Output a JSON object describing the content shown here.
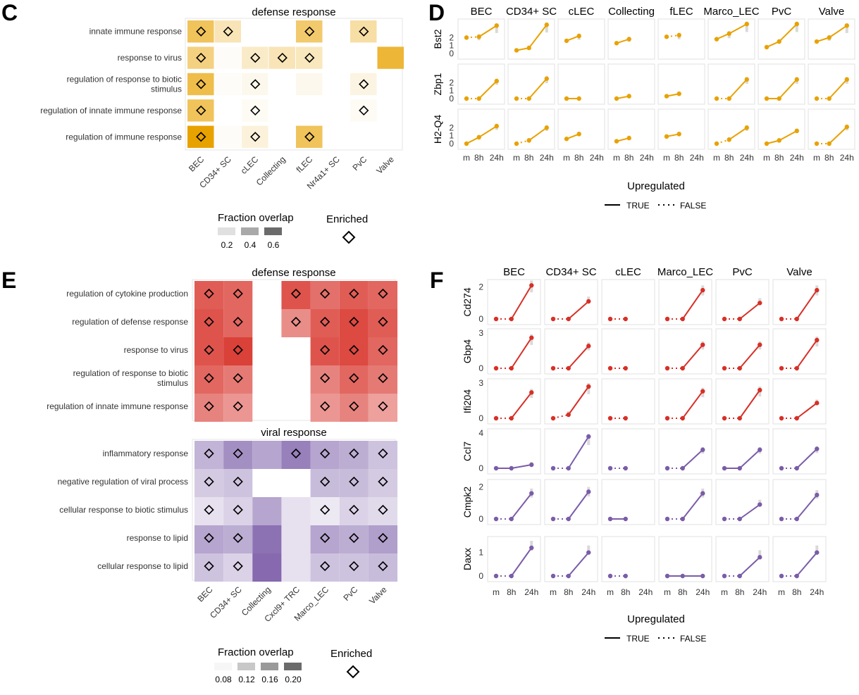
{
  "figure": {
    "panels": [
      "C",
      "D",
      "E",
      "F"
    ]
  },
  "colors": {
    "orange": "#e8a200",
    "red": "#d73027",
    "purple": "#7b5ca8",
    "grid_bg": "#ebebeb",
    "band": "#d9d9d9"
  },
  "legend_heat": {
    "fraction_title": "Fraction overlap",
    "enriched_title": "Enriched"
  },
  "legend_line": {
    "title": "Upregulated",
    "true_label": "TRUE",
    "false_label": "FALSE"
  },
  "chart_data": [
    {
      "id": "C",
      "type": "heatmap",
      "facet_titles": [
        "defense response"
      ],
      "columns": [
        "BEC",
        "CD34+ SC",
        "cLEC",
        "Collecting",
        "fLEC",
        "Nr4a1+ SC",
        "PvC",
        "Valve"
      ],
      "rows": [
        "innate immune response",
        "response to virus",
        "regulation of response to biotic stimulus",
        "regulation of innate immune response",
        "regulation of immune response"
      ],
      "values": [
        [
          0.45,
          0.2,
          null,
          null,
          0.4,
          null,
          0.25,
          null
        ],
        [
          0.35,
          0.02,
          0.15,
          0.2,
          0.18,
          null,
          null,
          0.55
        ],
        [
          0.5,
          0.02,
          0.05,
          null,
          0.05,
          null,
          0.08,
          null
        ],
        [
          0.45,
          null,
          0.03,
          null,
          null,
          null,
          0.03,
          null
        ],
        [
          0.7,
          0.02,
          0.1,
          null,
          0.45,
          null,
          null,
          null
        ]
      ],
      "enriched": [
        [
          true,
          true,
          false,
          false,
          true,
          false,
          true,
          false
        ],
        [
          true,
          false,
          true,
          true,
          true,
          false,
          false,
          false
        ],
        [
          true,
          false,
          true,
          false,
          false,
          false,
          true,
          false
        ],
        [
          true,
          false,
          true,
          false,
          false,
          false,
          true,
          false
        ],
        [
          true,
          false,
          true,
          false,
          true,
          false,
          false,
          false
        ]
      ],
      "legend_ticks": [
        "0.2",
        "0.4",
        "0.6"
      ]
    },
    {
      "id": "D",
      "type": "line",
      "columns": [
        "BEC",
        "CD34+ SC",
        "cLEC",
        "Collecting",
        "fLEC",
        "Marco_LEC",
        "PvC",
        "Valve"
      ],
      "x": [
        "m",
        "8h",
        "24h"
      ],
      "rows": [
        {
          "gene": "Bst2",
          "values": [
            [
              2.0,
              2.1,
              3.5
            ],
            [
              0.4,
              0.7,
              3.6
            ],
            [
              1.6,
              2.2,
              null
            ],
            [
              1.3,
              1.8,
              null
            ],
            [
              2.1,
              2.3,
              null
            ],
            [
              1.8,
              2.5,
              3.7
            ],
            [
              0.8,
              1.5,
              3.7
            ],
            [
              1.5,
              2.0,
              3.5
            ]
          ],
          "upregulated": [
            [
              false,
              true
            ],
            [
              true,
              true
            ],
            [
              true,
              false
            ],
            [
              true,
              false
            ],
            [
              false,
              false
            ],
            [
              true,
              true
            ],
            [
              true,
              true
            ],
            [
              true,
              true
            ]
          ]
        },
        {
          "gene": "Zbp1",
          "values": [
            [
              0.0,
              0.0,
              2.2
            ],
            [
              0.0,
              0.0,
              2.5
            ],
            [
              0.0,
              0.0,
              null
            ],
            [
              0.0,
              0.3,
              null
            ],
            [
              0.3,
              0.6,
              null
            ],
            [
              0.0,
              0.0,
              2.4
            ],
            [
              0.0,
              0.0,
              2.4
            ],
            [
              0.0,
              0.0,
              2.4
            ]
          ],
          "upregulated": [
            [
              false,
              true
            ],
            [
              false,
              true
            ],
            [
              true,
              false
            ],
            [
              true,
              false
            ],
            [
              true,
              false
            ],
            [
              false,
              true
            ],
            [
              true,
              true
            ],
            [
              false,
              true
            ]
          ]
        },
        {
          "gene": "H2-Q4",
          "values": [
            [
              0.0,
              0.8,
              2.2
            ],
            [
              0.0,
              0.4,
              2.0
            ],
            [
              0.6,
              1.2,
              null
            ],
            [
              0.3,
              0.7,
              null
            ],
            [
              0.9,
              1.2,
              null
            ],
            [
              0.0,
              0.5,
              2.0
            ],
            [
              0.0,
              0.4,
              1.6
            ],
            [
              0.0,
              0.0,
              2.1
            ]
          ],
          "upregulated": [
            [
              true,
              true
            ],
            [
              false,
              true
            ],
            [
              true,
              false
            ],
            [
              true,
              false
            ],
            [
              true,
              false
            ],
            [
              false,
              true
            ],
            [
              true,
              true
            ],
            [
              false,
              true
            ]
          ]
        }
      ],
      "ylabels": {
        "Bst2": "",
        "Zbp1": "",
        "H2-Q4": ""
      },
      "yticks": [
        "0",
        "1",
        "2"
      ],
      "color": "orange"
    },
    {
      "id": "E",
      "type": "heatmap",
      "facet_titles": [
        "defense response",
        "viral response"
      ],
      "columns": [
        "BEC",
        "CD34+ SC",
        "Collecting",
        "Cxcl9+ TRC",
        "Marco_LEC",
        "PvC",
        "Valve"
      ],
      "blocks": [
        {
          "title": "defense response",
          "color": "red",
          "rows": [
            "regulation of cytokine production",
            "regulation of defense response",
            "response to virus",
            "regulation of response to biotic stimulus",
            "regulation of innate immune response"
          ],
          "values": [
            [
              0.17,
              0.16,
              null,
              0.18,
              0.15,
              0.17,
              0.16
            ],
            [
              0.18,
              0.16,
              null,
              0.12,
              0.17,
              0.19,
              0.17
            ],
            [
              0.18,
              0.2,
              null,
              null,
              0.18,
              0.19,
              0.16
            ],
            [
              0.16,
              0.14,
              null,
              null,
              0.13,
              0.16,
              0.14
            ],
            [
              0.13,
              0.11,
              null,
              null,
              0.11,
              0.13,
              0.1
            ]
          ],
          "enriched": [
            [
              true,
              true,
              false,
              true,
              true,
              true,
              true
            ],
            [
              true,
              true,
              false,
              true,
              true,
              true,
              true
            ],
            [
              true,
              true,
              false,
              false,
              true,
              true,
              true
            ],
            [
              true,
              true,
              false,
              false,
              true,
              true,
              true
            ],
            [
              true,
              true,
              false,
              false,
              true,
              true,
              true
            ]
          ]
        },
        {
          "title": "viral response",
          "color": "purple",
          "rows": [
            "inflammatory response",
            "negative regulation of viral process",
            "cellular response to biotic stimulus",
            "response to lipid",
            "cellular response to lipid"
          ],
          "values": [
            [
              0.1,
              0.15,
              0.12,
              0.17,
              0.12,
              0.11,
              0.08
            ],
            [
              0.07,
              0.08,
              null,
              null,
              0.09,
              0.09,
              0.07
            ],
            [
              0.04,
              0.06,
              0.12,
              0.04,
              0.03,
              0.06,
              0.05
            ],
            [
              0.12,
              0.11,
              0.19,
              0.04,
              0.12,
              0.11,
              0.13
            ],
            [
              0.08,
              0.06,
              0.2,
              0.04,
              0.08,
              0.08,
              0.09
            ]
          ],
          "enriched": [
            [
              true,
              true,
              false,
              true,
              true,
              true,
              true
            ],
            [
              true,
              true,
              false,
              false,
              true,
              true,
              true
            ],
            [
              true,
              true,
              false,
              false,
              true,
              true,
              true
            ],
            [
              true,
              true,
              false,
              false,
              true,
              true,
              true
            ],
            [
              true,
              true,
              false,
              false,
              true,
              true,
              true
            ]
          ]
        }
      ],
      "legend_ticks": [
        "0.08",
        "0.12",
        "0.16",
        "0.20"
      ]
    },
    {
      "id": "F",
      "type": "line",
      "columns": [
        "BEC",
        "CD34+ SC",
        "cLEC",
        "Marco_LEC",
        "PvC",
        "Valve"
      ],
      "x": [
        "m",
        "8h",
        "24h"
      ],
      "rows": [
        {
          "gene": "Cd274",
          "ymax": 2.2,
          "yticks": [
            "0",
            "2"
          ],
          "tickvals": [
            0,
            2
          ],
          "color": "red",
          "values": [
            [
              0,
              0,
              2.1
            ],
            [
              0,
              0,
              1.1
            ],
            [
              0,
              0,
              null
            ],
            [
              0,
              0,
              1.8
            ],
            [
              0,
              0,
              1.0
            ],
            [
              0,
              0,
              1.8
            ]
          ],
          "upregulated": [
            [
              false,
              true
            ],
            [
              false,
              true
            ],
            [
              false,
              false
            ],
            [
              false,
              true
            ],
            [
              false,
              true
            ],
            [
              false,
              true
            ]
          ]
        },
        {
          "gene": "Gbp4",
          "ymax": 3.0,
          "yticks": [
            "0",
            "3"
          ],
          "tickvals": [
            0,
            3
          ],
          "color": "red",
          "values": [
            [
              0,
              0,
              2.6
            ],
            [
              0,
              0,
              1.9
            ],
            [
              0,
              0,
              null
            ],
            [
              0,
              0,
              2.0
            ],
            [
              0,
              0,
              2.0
            ],
            [
              0,
              0,
              2.4
            ]
          ],
          "upregulated": [
            [
              false,
              true
            ],
            [
              false,
              true
            ],
            [
              false,
              false
            ],
            [
              false,
              true
            ],
            [
              false,
              true
            ],
            [
              false,
              true
            ]
          ]
        },
        {
          "gene": "Ifi204",
          "ymax": 3.0,
          "yticks": [
            "0",
            "3"
          ],
          "tickvals": [
            0,
            3
          ],
          "color": "red",
          "values": [
            [
              0,
              0,
              2.2
            ],
            [
              0,
              0.3,
              2.7
            ],
            [
              0,
              0,
              null
            ],
            [
              0,
              0,
              2.3
            ],
            [
              0,
              0,
              2.4
            ],
            [
              0,
              0,
              1.3
            ]
          ],
          "upregulated": [
            [
              false,
              true
            ],
            [
              false,
              true
            ],
            [
              false,
              false
            ],
            [
              false,
              true
            ],
            [
              false,
              true
            ],
            [
              false,
              true
            ]
          ]
        },
        {
          "gene": "Ccl7",
          "ymax": 4.0,
          "yticks": [
            "0",
            "4"
          ],
          "tickvals": [
            0,
            4
          ],
          "color": "purple",
          "values": [
            [
              0,
              0,
              0.4
            ],
            [
              0,
              0,
              3.6
            ],
            [
              0,
              0,
              null
            ],
            [
              0,
              0,
              2.1
            ],
            [
              0,
              0,
              2.1
            ],
            [
              0,
              0,
              2.2
            ]
          ],
          "upregulated": [
            [
              true,
              true
            ],
            [
              false,
              true
            ],
            [
              false,
              false
            ],
            [
              false,
              true
            ],
            [
              true,
              true
            ],
            [
              false,
              true
            ]
          ]
        },
        {
          "gene": "Cmpk2",
          "ymax": 2.2,
          "yticks": [
            "0",
            "2"
          ],
          "tickvals": [
            0,
            2
          ],
          "color": "purple",
          "values": [
            [
              0,
              0,
              1.6
            ],
            [
              0,
              0,
              1.7
            ],
            [
              0,
              0,
              null
            ],
            [
              0,
              0,
              1.6
            ],
            [
              0,
              0,
              0.9
            ],
            [
              0,
              0,
              1.5
            ]
          ],
          "upregulated": [
            [
              false,
              true
            ],
            [
              false,
              true
            ],
            [
              true,
              false
            ],
            [
              false,
              true
            ],
            [
              false,
              true
            ],
            [
              false,
              true
            ]
          ]
        },
        {
          "gene": "Daxx",
          "ymax": 1.5,
          "yticks": [
            "0",
            "1"
          ],
          "tickvals": [
            0,
            1
          ],
          "color": "purple",
          "values": [
            [
              0,
              0,
              1.2
            ],
            [
              0,
              0,
              1.0
            ],
            [
              0,
              0,
              null
            ],
            [
              0,
              0,
              0
            ],
            [
              0,
              0,
              0.8
            ],
            [
              0,
              0,
              1.0
            ]
          ],
          "upregulated": [
            [
              false,
              true
            ],
            [
              false,
              true
            ],
            [
              false,
              false
            ],
            [
              true,
              true
            ],
            [
              false,
              true
            ],
            [
              false,
              true
            ]
          ]
        }
      ]
    }
  ]
}
